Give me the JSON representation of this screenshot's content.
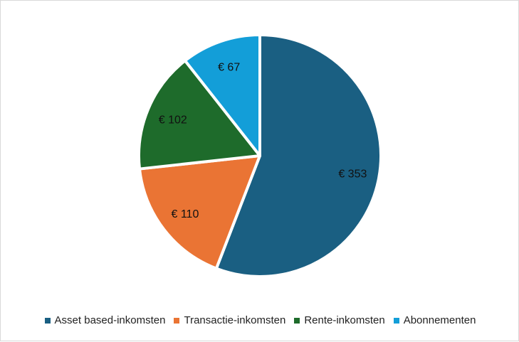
{
  "chart_data": {
    "type": "pie",
    "categories": [
      "Asset based-inkomsten",
      "Transactie-inkomsten",
      "Rente-inkomsten",
      "Abonnementen"
    ],
    "values": [
      353,
      110,
      102,
      67
    ],
    "labels": [
      "€ 353",
      "€ 110",
      "€ 102",
      "€ 67"
    ],
    "colors": [
      "#1a5f82",
      "#ea7434",
      "#1e6b2b",
      "#139ed8"
    ],
    "legend_position": "bottom"
  }
}
